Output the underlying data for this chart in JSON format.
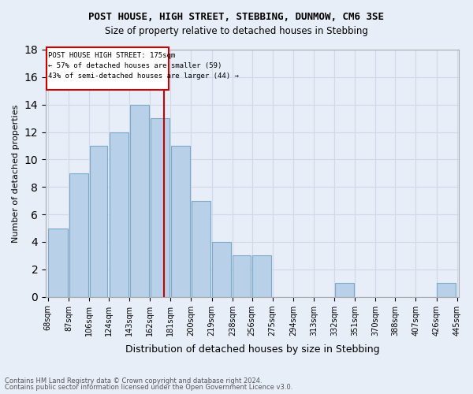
{
  "title": "POST HOUSE, HIGH STREET, STEBBING, DUNMOW, CM6 3SE",
  "subtitle": "Size of property relative to detached houses in Stebbing",
  "xlabel": "Distribution of detached houses by size in Stebbing",
  "ylabel": "Number of detached properties",
  "footnote1": "Contains HM Land Registry data © Crown copyright and database right 2024.",
  "footnote2": "Contains public sector information licensed under the Open Government Licence v3.0.",
  "annotation_line1": "POST HOUSE HIGH STREET: 175sqm",
  "annotation_line2": "← 57% of detached houses are smaller (59)",
  "annotation_line3": "43% of semi-detached houses are larger (44) →",
  "property_size": 175,
  "bins": [
    68,
    87,
    106,
    124,
    143,
    162,
    181,
    200,
    219,
    238,
    256,
    275,
    294,
    313,
    332,
    351,
    370,
    388,
    407,
    426,
    445
  ],
  "bin_labels": [
    "68sqm",
    "87sqm",
    "106sqm",
    "124sqm",
    "143sqm",
    "162sqm",
    "181sqm",
    "200sqm",
    "219sqm",
    "238sqm",
    "256sqm",
    "275sqm",
    "294sqm",
    "313sqm",
    "332sqm",
    "351sqm",
    "370sqm",
    "388sqm",
    "407sqm",
    "426sqm",
    "445sqm"
  ],
  "counts": [
    5,
    9,
    11,
    12,
    14,
    13,
    11,
    7,
    4,
    3,
    3,
    0,
    0,
    0,
    1,
    0,
    0,
    0,
    0,
    1
  ],
  "bar_color": "#b8d0e8",
  "bar_edge_color": "#7aaac8",
  "vline_color": "#cc0000",
  "vline_x": 175,
  "ylim": [
    0,
    18
  ],
  "yticks": [
    0,
    2,
    4,
    6,
    8,
    10,
    12,
    14,
    16,
    18
  ],
  "grid_color": "#d0d8e8",
  "annotation_box_color": "#cc0000",
  "bg_color": "#e8eef8"
}
